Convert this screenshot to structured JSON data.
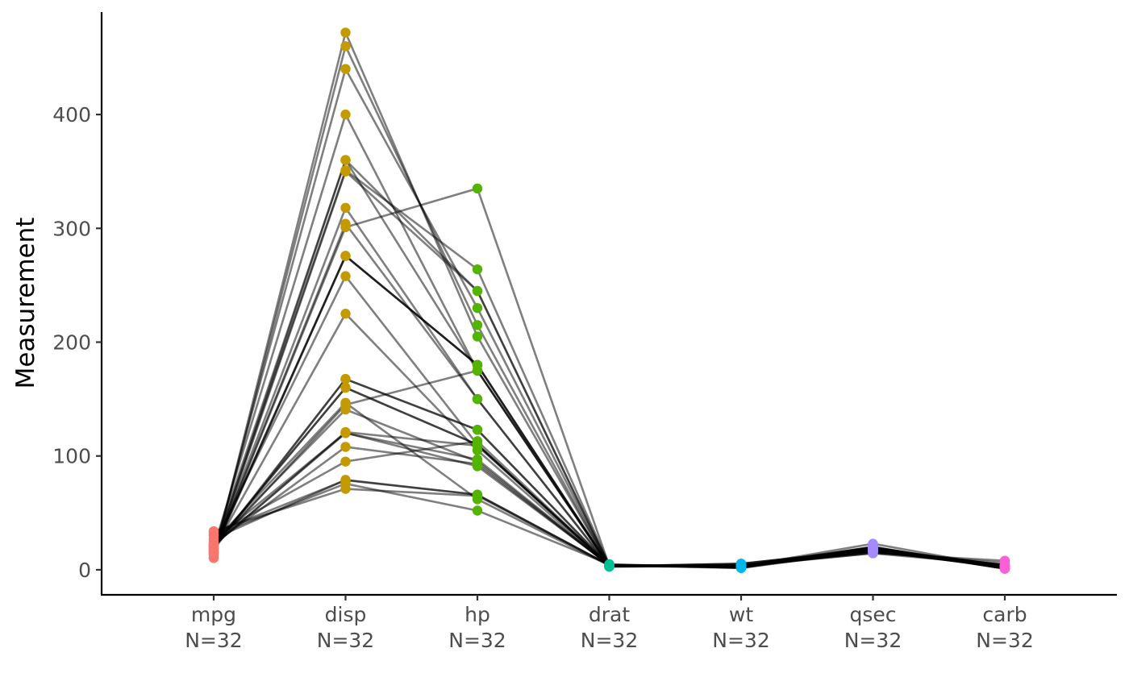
{
  "chart_data": {
    "type": "line",
    "title": "",
    "xlabel": "",
    "ylabel": "Measurement",
    "ylim": [
      -22,
      490
    ],
    "yticks": [
      0,
      100,
      200,
      300,
      400
    ],
    "legend": "none",
    "grid": false,
    "categories": [
      "mpg",
      "disp",
      "hp",
      "drat",
      "wt",
      "qsec",
      "carb"
    ],
    "category_labels": [
      {
        "name": "mpg",
        "n": "N=32"
      },
      {
        "name": "disp",
        "n": "N=32"
      },
      {
        "name": "hp",
        "n": "N=32"
      },
      {
        "name": "drat",
        "n": "N=32"
      },
      {
        "name": "wt",
        "n": "N=32"
      },
      {
        "name": "qsec",
        "n": "N=32"
      },
      {
        "name": "carb",
        "n": "N=32"
      }
    ],
    "colors": [
      "#F8766D",
      "#C49A00",
      "#53B400",
      "#00C094",
      "#00B6EB",
      "#A58AFF",
      "#FB61D7"
    ],
    "series": [
      {
        "values": [
          21.0,
          160.0,
          110,
          3.9,
          2.62,
          16.46,
          4
        ]
      },
      {
        "values": [
          21.0,
          160.0,
          110,
          3.9,
          2.875,
          17.02,
          4
        ]
      },
      {
        "values": [
          22.8,
          108.0,
          93,
          3.85,
          2.32,
          18.61,
          1
        ]
      },
      {
        "values": [
          21.4,
          258.0,
          110,
          3.08,
          3.215,
          19.44,
          1
        ]
      },
      {
        "values": [
          18.7,
          360.0,
          175,
          3.15,
          3.44,
          17.02,
          2
        ]
      },
      {
        "values": [
          18.1,
          225.0,
          105,
          2.76,
          3.46,
          20.22,
          1
        ]
      },
      {
        "values": [
          14.3,
          360.0,
          245,
          3.21,
          3.57,
          15.84,
          4
        ]
      },
      {
        "values": [
          24.4,
          146.7,
          62,
          3.69,
          3.19,
          20.0,
          2
        ]
      },
      {
        "values": [
          22.8,
          140.8,
          95,
          3.92,
          3.15,
          22.9,
          2
        ]
      },
      {
        "values": [
          19.2,
          167.6,
          123,
          3.92,
          3.44,
          18.3,
          4
        ]
      },
      {
        "values": [
          17.8,
          167.6,
          123,
          3.92,
          3.44,
          18.9,
          4
        ]
      },
      {
        "values": [
          16.4,
          275.8,
          180,
          3.07,
          4.07,
          17.4,
          3
        ]
      },
      {
        "values": [
          17.3,
          275.8,
          180,
          3.07,
          3.73,
          17.6,
          3
        ]
      },
      {
        "values": [
          15.2,
          275.8,
          180,
          3.07,
          3.78,
          18.0,
          3
        ]
      },
      {
        "values": [
          10.4,
          472.0,
          205,
          2.93,
          5.25,
          17.98,
          4
        ]
      },
      {
        "values": [
          10.4,
          460.0,
          215,
          3.0,
          5.424,
          17.82,
          4
        ]
      },
      {
        "values": [
          14.7,
          440.0,
          230,
          3.23,
          5.345,
          17.42,
          4
        ]
      },
      {
        "values": [
          32.4,
          78.7,
          66,
          4.08,
          2.2,
          19.47,
          1
        ]
      },
      {
        "values": [
          30.4,
          75.7,
          52,
          4.93,
          1.615,
          18.52,
          2
        ]
      },
      {
        "values": [
          33.9,
          71.1,
          65,
          4.22,
          1.835,
          19.9,
          1
        ]
      },
      {
        "values": [
          21.5,
          120.1,
          97,
          3.7,
          2.465,
          20.01,
          1
        ]
      },
      {
        "values": [
          15.5,
          318.0,
          150,
          2.76,
          3.52,
          16.87,
          2
        ]
      },
      {
        "values": [
          15.2,
          304.0,
          150,
          3.15,
          3.435,
          17.3,
          2
        ]
      },
      {
        "values": [
          13.3,
          350.0,
          245,
          3.73,
          3.84,
          15.41,
          4
        ]
      },
      {
        "values": [
          19.2,
          400.0,
          175,
          3.08,
          3.845,
          17.05,
          2
        ]
      },
      {
        "values": [
          27.3,
          79.0,
          66,
          4.08,
          1.935,
          18.9,
          1
        ]
      },
      {
        "values": [
          26.0,
          120.3,
          91,
          4.43,
          2.14,
          16.7,
          2
        ]
      },
      {
        "values": [
          30.4,
          95.1,
          113,
          3.77,
          1.513,
          16.9,
          2
        ]
      },
      {
        "values": [
          15.8,
          351.0,
          264,
          4.22,
          3.17,
          14.5,
          4
        ]
      },
      {
        "values": [
          19.7,
          145.0,
          175,
          3.62,
          2.77,
          15.5,
          6
        ]
      },
      {
        "values": [
          15.0,
          301.0,
          335,
          3.54,
          3.57,
          14.6,
          8
        ]
      },
      {
        "values": [
          21.4,
          121.0,
          109,
          4.11,
          2.78,
          18.6,
          2
        ]
      }
    ]
  }
}
